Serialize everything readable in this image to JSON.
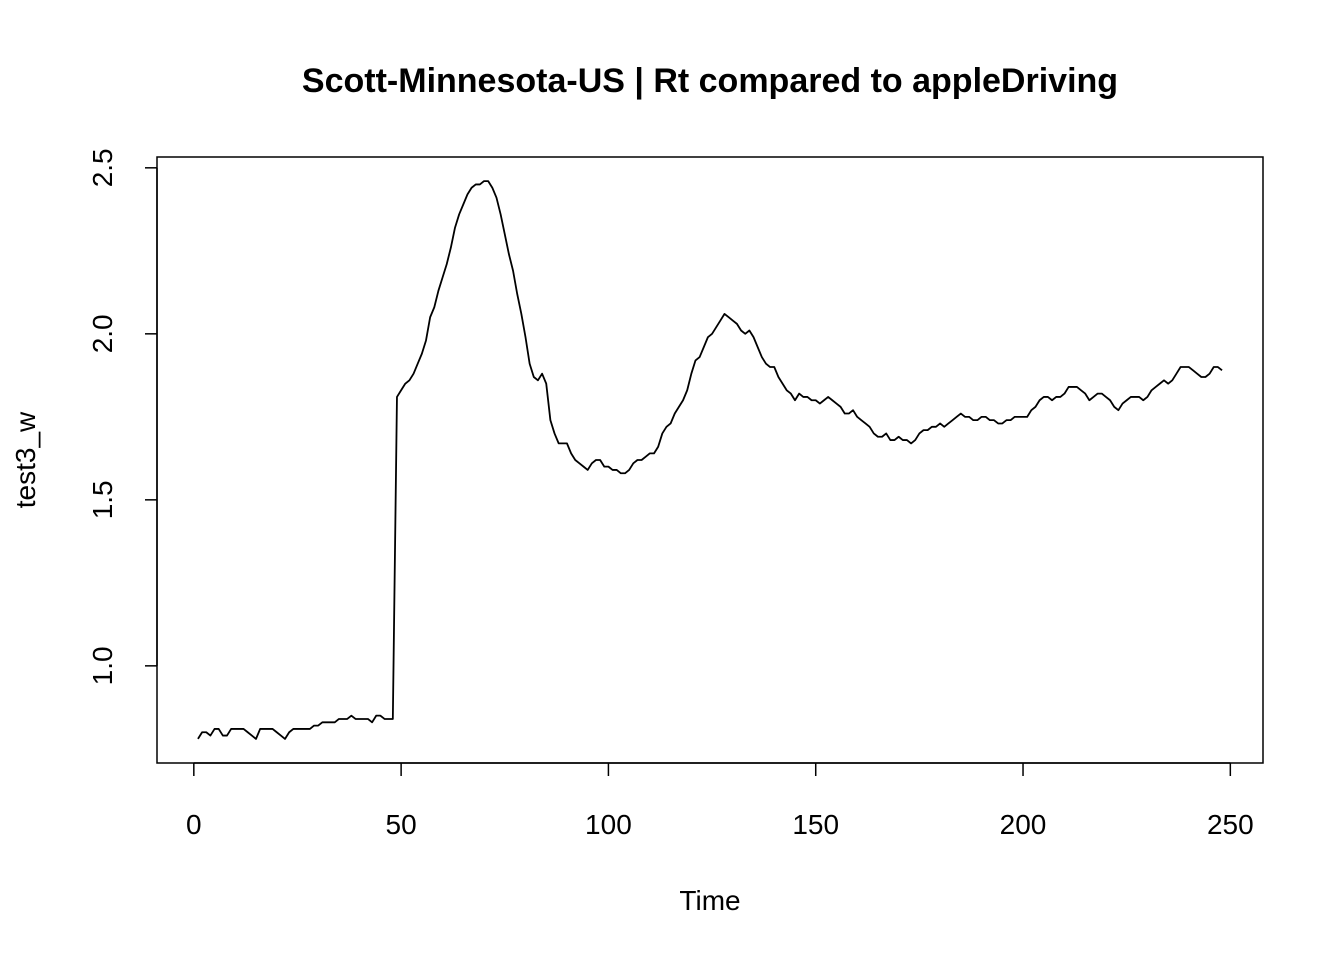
{
  "chart_data": {
    "type": "line",
    "title": "Scott-Minnesota-US | Rt compared to appleDriving",
    "x_label": "Time",
    "y_label": "test3_w",
    "color": "#000000",
    "x": [
      1,
      2,
      3,
      4,
      5,
      6,
      7,
      8,
      9,
      10,
      11,
      12,
      13,
      14,
      15,
      16,
      17,
      18,
      19,
      20,
      21,
      22,
      23,
      24,
      25,
      26,
      27,
      28,
      29,
      30,
      31,
      32,
      33,
      34,
      35,
      36,
      37,
      38,
      39,
      40,
      41,
      42,
      43,
      44,
      45,
      46,
      47,
      48,
      49,
      50,
      51,
      52,
      53,
      54,
      55,
      56,
      57,
      58,
      59,
      60,
      61,
      62,
      63,
      64,
      65,
      66,
      67,
      68,
      69,
      70,
      71,
      72,
      73,
      74,
      75,
      76,
      77,
      78,
      79,
      80,
      81,
      82,
      83,
      84,
      85,
      86,
      87,
      88,
      89,
      90,
      91,
      92,
      93,
      94,
      95,
      96,
      97,
      98,
      99,
      100,
      101,
      102,
      103,
      104,
      105,
      106,
      107,
      108,
      109,
      110,
      111,
      112,
      113,
      114,
      115,
      116,
      117,
      118,
      119,
      120,
      121,
      122,
      123,
      124,
      125,
      126,
      127,
      128,
      129,
      130,
      131,
      132,
      133,
      134,
      135,
      136,
      137,
      138,
      139,
      140,
      141,
      142,
      143,
      144,
      145,
      146,
      147,
      148,
      149,
      150,
      151,
      152,
      153,
      154,
      155,
      156,
      157,
      158,
      159,
      160,
      161,
      162,
      163,
      164,
      165,
      166,
      167,
      168,
      169,
      170,
      171,
      172,
      173,
      174,
      175,
      176,
      177,
      178,
      179,
      180,
      181,
      182,
      183,
      184,
      185,
      186,
      187,
      188,
      189,
      190,
      191,
      192,
      193,
      194,
      195,
      196,
      197,
      198,
      199,
      200,
      201,
      202,
      203,
      204,
      205,
      206,
      207,
      208,
      209,
      210,
      211,
      212,
      213,
      214,
      215,
      216,
      217,
      218,
      219,
      220,
      221,
      222,
      223,
      224,
      225,
      226,
      227,
      228,
      229,
      230,
      231,
      232,
      233,
      234,
      235,
      236,
      237,
      238,
      239,
      240,
      241,
      242,
      243,
      244,
      245,
      246,
      247,
      248
    ],
    "values": [
      0.78,
      0.8,
      0.8,
      0.79,
      0.81,
      0.81,
      0.79,
      0.79,
      0.81,
      0.81,
      0.81,
      0.81,
      0.8,
      0.79,
      0.78,
      0.81,
      0.81,
      0.81,
      0.81,
      0.8,
      0.79,
      0.78,
      0.8,
      0.81,
      0.81,
      0.81,
      0.81,
      0.81,
      0.82,
      0.82,
      0.83,
      0.83,
      0.83,
      0.83,
      0.84,
      0.84,
      0.84,
      0.85,
      0.84,
      0.84,
      0.84,
      0.84,
      0.83,
      0.85,
      0.85,
      0.84,
      0.84,
      0.84,
      1.81,
      1.83,
      1.85,
      1.86,
      1.88,
      1.91,
      1.94,
      1.98,
      2.05,
      2.08,
      2.13,
      2.17,
      2.21,
      2.26,
      2.32,
      2.36,
      2.39,
      2.42,
      2.44,
      2.45,
      2.45,
      2.46,
      2.46,
      2.44,
      2.41,
      2.36,
      2.3,
      2.24,
      2.19,
      2.12,
      2.06,
      1.99,
      1.91,
      1.87,
      1.86,
      1.88,
      1.85,
      1.74,
      1.7,
      1.67,
      1.67,
      1.67,
      1.64,
      1.62,
      1.61,
      1.6,
      1.59,
      1.61,
      1.62,
      1.62,
      1.6,
      1.6,
      1.59,
      1.59,
      1.58,
      1.58,
      1.59,
      1.61,
      1.62,
      1.62,
      1.63,
      1.64,
      1.64,
      1.66,
      1.7,
      1.72,
      1.73,
      1.76,
      1.78,
      1.8,
      1.83,
      1.88,
      1.92,
      1.93,
      1.96,
      1.99,
      2.0,
      2.02,
      2.04,
      2.06,
      2.05,
      2.04,
      2.03,
      2.01,
      2.0,
      2.01,
      1.99,
      1.96,
      1.93,
      1.91,
      1.9,
      1.9,
      1.87,
      1.85,
      1.83,
      1.82,
      1.8,
      1.82,
      1.81,
      1.81,
      1.8,
      1.8,
      1.79,
      1.8,
      1.81,
      1.8,
      1.79,
      1.78,
      1.76,
      1.76,
      1.77,
      1.75,
      1.74,
      1.73,
      1.72,
      1.7,
      1.69,
      1.69,
      1.7,
      1.68,
      1.68,
      1.69,
      1.68,
      1.68,
      1.67,
      1.68,
      1.7,
      1.71,
      1.71,
      1.72,
      1.72,
      1.73,
      1.72,
      1.73,
      1.74,
      1.75,
      1.76,
      1.75,
      1.75,
      1.74,
      1.74,
      1.75,
      1.75,
      1.74,
      1.74,
      1.73,
      1.73,
      1.74,
      1.74,
      1.75,
      1.75,
      1.75,
      1.75,
      1.77,
      1.78,
      1.8,
      1.81,
      1.81,
      1.8,
      1.81,
      1.81,
      1.82,
      1.84,
      1.84,
      1.84,
      1.83,
      1.82,
      1.8,
      1.81,
      1.82,
      1.82,
      1.81,
      1.8,
      1.78,
      1.77,
      1.79,
      1.8,
      1.81,
      1.81,
      1.81,
      1.8,
      1.81,
      1.83,
      1.84,
      1.85,
      1.86,
      1.85,
      1.86,
      1.88,
      1.9,
      1.9,
      1.9,
      1.89,
      1.88,
      1.87,
      1.87,
      1.88,
      1.9,
      1.9,
      1.89
    ],
    "xlim": [
      -8.88,
      257.88
    ],
    "ylim": [
      0.7074,
      2.5326
    ],
    "xticks": [
      0,
      50,
      100,
      150,
      200,
      250
    ],
    "yticks": [
      {
        "value": 1,
        "label": "1.0"
      },
      1.5,
      {
        "value": 2,
        "label": "2.0"
      },
      2.5
    ]
  }
}
